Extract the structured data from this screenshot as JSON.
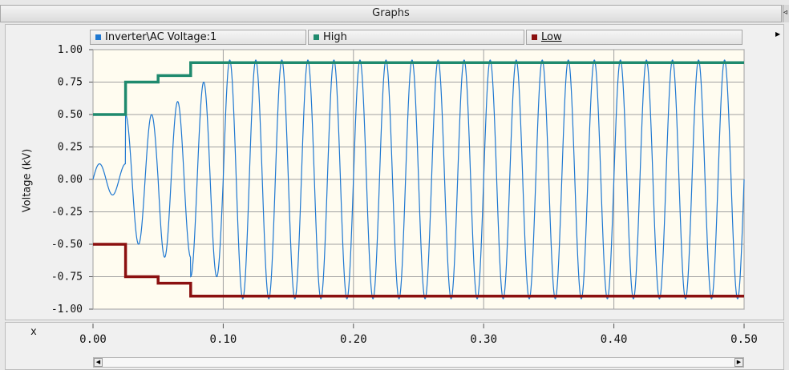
{
  "window": {
    "title": "Graphs"
  },
  "legend": [
    {
      "label": "Inverter\\AC Voltage:1",
      "color": "#1f78d1"
    },
    {
      "label": "High",
      "color": "#1f8a6e"
    },
    {
      "label": "Low",
      "color": "#8b1010"
    }
  ],
  "x_axis_name": "x",
  "chart_data": {
    "type": "line",
    "ylabel": "Voltage (kV)",
    "xlabel": "",
    "xlim": [
      0.0,
      0.5
    ],
    "ylim": [
      -1.0,
      1.0
    ],
    "x_ticks": [
      "0.00",
      "0.10",
      "0.20",
      "0.30",
      "0.40",
      "0.50"
    ],
    "y_ticks": [
      "1.00",
      "0.75",
      "0.50",
      "0.25",
      "0.00",
      "-0.25",
      "-0.50",
      "-0.75",
      "-1.00"
    ],
    "grid": true,
    "series": [
      {
        "name": "Inverter\\AC Voltage:1",
        "kind": "sine",
        "frequency_hz": 50,
        "envelope": {
          "t": [
            0.0,
            0.025,
            0.05,
            0.075,
            0.1,
            0.5
          ],
          "amplitude": [
            0.12,
            0.5,
            0.6,
            0.75,
            0.92,
            0.92
          ]
        }
      },
      {
        "name": "High",
        "kind": "step",
        "x": [
          0.0,
          0.025,
          0.05,
          0.075,
          0.5
        ],
        "y": [
          0.5,
          0.75,
          0.8,
          0.9,
          0.9
        ]
      },
      {
        "name": "Low",
        "kind": "step",
        "x": [
          0.0,
          0.025,
          0.05,
          0.075,
          0.5
        ],
        "y": [
          -0.5,
          -0.75,
          -0.8,
          -0.9,
          -0.9
        ]
      }
    ]
  }
}
